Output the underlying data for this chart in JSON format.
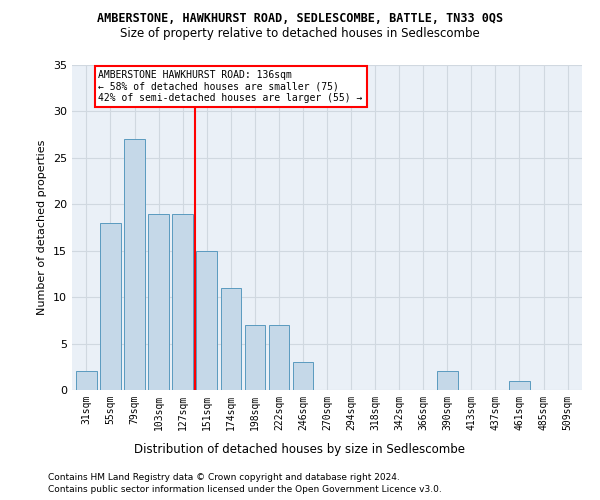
{
  "title": "AMBERSTONE, HAWKHURST ROAD, SEDLESCOMBE, BATTLE, TN33 0QS",
  "subtitle": "Size of property relative to detached houses in Sedlescombe",
  "xlabel": "Distribution of detached houses by size in Sedlescombe",
  "ylabel": "Number of detached properties",
  "categories": [
    "31sqm",
    "55sqm",
    "79sqm",
    "103sqm",
    "127sqm",
    "151sqm",
    "174sqm",
    "198sqm",
    "222sqm",
    "246sqm",
    "270sqm",
    "294sqm",
    "318sqm",
    "342sqm",
    "366sqm",
    "390sqm",
    "413sqm",
    "437sqm",
    "461sqm",
    "485sqm",
    "509sqm"
  ],
  "values": [
    2,
    18,
    27,
    19,
    19,
    15,
    11,
    7,
    7,
    3,
    0,
    0,
    0,
    0,
    0,
    2,
    0,
    0,
    1,
    0,
    0
  ],
  "bar_color": "#c5d8e8",
  "bar_edgecolor": "#5a9abf",
  "red_line_x": 4.5,
  "annotation_title": "AMBERSTONE HAWKHURST ROAD: 136sqm",
  "annotation_line1": "← 58% of detached houses are smaller (75)",
  "annotation_line2": "42% of semi-detached houses are larger (55) →",
  "ylim": [
    0,
    35
  ],
  "yticks": [
    0,
    5,
    10,
    15,
    20,
    25,
    30,
    35
  ],
  "grid_color": "#d0d8e0",
  "bg_color": "#eaf0f7",
  "footer1": "Contains HM Land Registry data © Crown copyright and database right 2024.",
  "footer2": "Contains public sector information licensed under the Open Government Licence v3.0."
}
